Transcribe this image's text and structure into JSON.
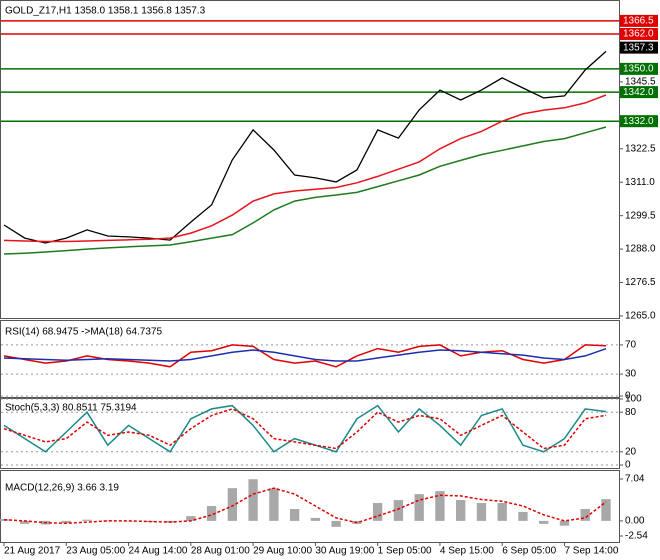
{
  "chart_data": [
    {
      "type": "line",
      "title": "GOLD_Z17,H1  1358.0 1358.1 1356.8 1357.3",
      "categories": [
        "21 Aug 2017",
        null,
        null,
        "23 Aug 05:00",
        null,
        null,
        "24 Aug 14:00",
        null,
        null,
        "28 Aug 01:00",
        null,
        null,
        "29 Aug 10:00",
        null,
        null,
        "30 Aug 19:00",
        null,
        null,
        "1 Sep 05:00",
        null,
        null,
        "4 Sep 15:00",
        null,
        null,
        "6 Sep 05:00",
        null,
        null,
        "7 Sep 14:00",
        null,
        null
      ],
      "series": [
        {
          "color": "#000000",
          "values": [
            1296.3,
            1291.8,
            1290.1,
            1291.8,
            1294.6,
            1292.5,
            1292.2,
            1291.8,
            1291.1,
            1297.3,
            1303.2,
            1318.7,
            1329.0,
            1322.1,
            1313.5,
            1312.5,
            1311.1,
            1315.2,
            1329.0,
            1326.2,
            1335.9,
            1342.7,
            1339.3,
            1342.7,
            1346.9,
            1343.4,
            1340.0,
            1340.7,
            1349.6,
            1356.0
          ]
        },
        {
          "color": "#e8141c",
          "values": [
            1291.0,
            1290.8,
            1290.6,
            1290.6,
            1290.8,
            1291.0,
            1291.2,
            1291.4,
            1291.8,
            1293.5,
            1296.0,
            1299.7,
            1304.5,
            1307.0,
            1308.0,
            1308.6,
            1309.2,
            1310.8,
            1313.0,
            1315.5,
            1318.0,
            1322.5,
            1326.0,
            1328.5,
            1332.0,
            1334.5,
            1335.8,
            1336.6,
            1338.3,
            1341.0
          ]
        },
        {
          "color": "#1f7a1f",
          "values": [
            1286.3,
            1286.6,
            1287.0,
            1287.5,
            1288.0,
            1288.4,
            1288.8,
            1289.1,
            1289.4,
            1290.5,
            1291.8,
            1293.0,
            1297.0,
            1301.5,
            1304.5,
            1305.8,
            1306.6,
            1307.5,
            1309.5,
            1311.5,
            1313.5,
            1316.5,
            1318.5,
            1320.5,
            1322.0,
            1323.5,
            1325.0,
            1326.0,
            1328.0,
            1330.0
          ]
        }
      ],
      "levels": {
        "values": [
          1366.5,
          1362,
          1350,
          1342,
          1332
        ],
        "value_labels": [
          "1366.5",
          "1362.0",
          "1350.0",
          "1342.0",
          "1332.0"
        ],
        "colors": [
          "#e00000",
          "#e00000",
          "#007000",
          "#007000",
          "#007000"
        ]
      },
      "last_price": 1357.3,
      "ylim": [
        1264.3,
        1373
      ],
      "yticks": [
        {
          "value": 1265,
          "label": "1265.0"
        },
        1276.5,
        {
          "value": 1288,
          "label": "1288.0"
        },
        1299.5,
        {
          "value": 1311,
          "label": "1311.0"
        },
        1322.5,
        1345.5
      ]
    },
    {
      "type": "line",
      "title": "RSI(14) 68.9475  ->MA(18) 64.7375",
      "series": [
        {
          "color": "#e00000",
          "values": [
            55,
            50,
            45,
            48,
            55,
            50,
            48,
            45,
            40,
            60,
            62,
            70,
            68,
            50,
            45,
            48,
            40,
            55,
            65,
            60,
            68,
            70,
            55,
            60,
            62,
            50,
            45,
            50,
            70,
            68.9475
          ]
        },
        {
          "color": "#1c2fb0",
          "values": [
            52,
            51,
            50,
            49,
            50,
            51,
            50,
            49,
            48,
            50,
            55,
            60,
            63,
            60,
            55,
            50,
            48,
            48,
            52,
            56,
            60,
            63,
            62,
            60,
            58,
            56,
            52,
            50,
            55,
            64.7375
          ]
        }
      ],
      "ylim": [
        0,
        100
      ],
      "yticks": [
        0,
        30,
        70
      ],
      "grid": true
    },
    {
      "type": "line",
      "title": "Stoch(5,3,3) 80.8511 75.3194",
      "series": [
        {
          "color": "#1a8a8a",
          "values": [
            60,
            40,
            20,
            50,
            80,
            30,
            60,
            40,
            20,
            70,
            85,
            90,
            60,
            20,
            40,
            30,
            20,
            70,
            90,
            50,
            85,
            60,
            30,
            75,
            85,
            30,
            20,
            40,
            85,
            80.8511
          ]
        },
        {
          "color": "#e00000",
          "dashed": true,
          "values": [
            55,
            45,
            35,
            40,
            65,
            45,
            50,
            45,
            30,
            55,
            75,
            85,
            70,
            40,
            35,
            30,
            25,
            50,
            80,
            65,
            75,
            70,
            45,
            60,
            75,
            50,
            25,
            30,
            70,
            75.3194
          ]
        }
      ],
      "ylim": [
        0,
        100
      ],
      "yticks": [
        0,
        20,
        80,
        100
      ],
      "grid": true
    },
    {
      "type": "bar",
      "title": "MACD(12,26,9) 3.66 3.19",
      "color": "#a8a8a8",
      "values": [
        0.3,
        -0.5,
        -0.6,
        -0.4,
        0.2,
        0.1,
        -0.1,
        -0.2,
        -0.3,
        0.8,
        2.5,
        5.5,
        7.0,
        5.5,
        2.0,
        0.5,
        -1.0,
        -0.5,
        3.0,
        3.5,
        4.5,
        5.0,
        3.5,
        3.0,
        3.0,
        1.5,
        -0.5,
        -0.8,
        2.0,
        3.66
      ],
      "series": [
        {
          "color": "#e00000",
          "dashed": true,
          "values": [
            0.2,
            0,
            -0.3,
            -0.4,
            -0.2,
            0,
            0,
            -0.1,
            -0.2,
            0,
            1,
            2.5,
            4.5,
            5.5,
            4.5,
            2.5,
            0.5,
            -0.3,
            0.8,
            2,
            3.5,
            4.3,
            4.2,
            3.6,
            3.3,
            2.5,
            1,
            0,
            0.5,
            3.19
          ]
        }
      ],
      "ylim": [
        -2.54,
        7.04
      ],
      "yticks": [
        -2.54,
        {
          "value": 0,
          "label": "0.00"
        },
        7.04
      ]
    }
  ]
}
